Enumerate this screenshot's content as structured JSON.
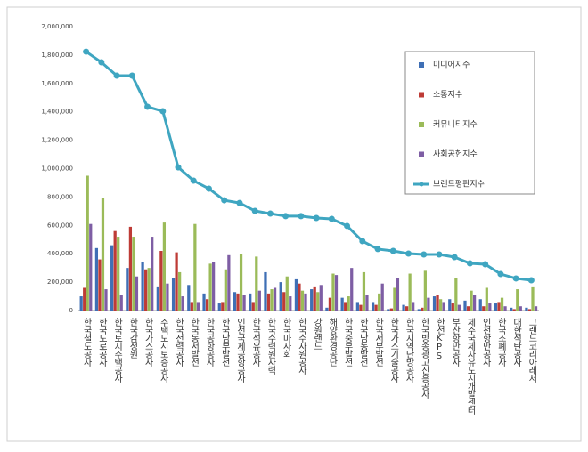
{
  "chart_data": {
    "type": "bar-line",
    "categories": [
      "한국철도공사",
      "한국도로공사",
      "한국토지주택공사",
      "한국감정원",
      "한국가스공사",
      "주택도시보증공사",
      "한국전력공사",
      "한국동서발전",
      "한국공항공사",
      "한국남부발전",
      "인천국제공항공사",
      "한국석유공사",
      "한국수력원자력",
      "한국마사회",
      "한국수자원공사",
      "강원랜드",
      "해양환경공단",
      "한국중부발전",
      "한국남동발전",
      "한국서부발전",
      "한국가스기술공사",
      "한국지역난방공사",
      "한국방송광고진흥공사",
      "한전KPS",
      "부산항만공사",
      "제주국제자유도시개발센터",
      "인천항만공사",
      "한국조폐공사",
      "대한석탄공사",
      "그랜드코리아레저"
    ],
    "series": [
      {
        "name": "미디어지수",
        "color": "#3f6fb5",
        "kind": "bar",
        "values": [
          100000,
          440000,
          460000,
          300000,
          340000,
          170000,
          230000,
          180000,
          120000,
          50000,
          130000,
          120000,
          270000,
          200000,
          220000,
          150000,
          20000,
          90000,
          60000,
          60000,
          10000,
          40000,
          10000,
          100000,
          80000,
          70000,
          80000,
          50000,
          20000,
          20000
        ]
      },
      {
        "name": "소통지수",
        "color": "#be3b36",
        "kind": "bar",
        "values": [
          160000,
          360000,
          560000,
          590000,
          290000,
          420000,
          410000,
          60000,
          80000,
          60000,
          120000,
          60000,
          120000,
          130000,
          190000,
          170000,
          90000,
          60000,
          40000,
          40000,
          15000,
          30000,
          20000,
          110000,
          50000,
          30000,
          30000,
          60000,
          10000,
          10000
        ]
      },
      {
        "name": "커뮤니티지수",
        "color": "#9bbb59",
        "kind": "bar",
        "values": [
          950000,
          790000,
          520000,
          520000,
          300000,
          620000,
          270000,
          610000,
          330000,
          290000,
          400000,
          380000,
          150000,
          240000,
          140000,
          130000,
          260000,
          100000,
          270000,
          120000,
          160000,
          260000,
          280000,
          80000,
          230000,
          140000,
          160000,
          90000,
          150000,
          170000
        ]
      },
      {
        "name": "사회공헌지수",
        "color": "#7e5ea4",
        "kind": "bar",
        "values": [
          610000,
          150000,
          110000,
          240000,
          520000,
          190000,
          100000,
          60000,
          340000,
          390000,
          110000,
          140000,
          160000,
          100000,
          120000,
          180000,
          250000,
          300000,
          110000,
          190000,
          230000,
          60000,
          90000,
          60000,
          40000,
          110000,
          50000,
          30000,
          30000,
          30000
        ]
      },
      {
        "name": "브랜드평판지수",
        "color": "#3fa6c1",
        "kind": "line",
        "values": [
          1824000,
          1749000,
          1655000,
          1655000,
          1436000,
          1404000,
          1009000,
          915000,
          859000,
          777000,
          758000,
          702000,
          683000,
          665000,
          665000,
          652000,
          646000,
          596000,
          489000,
          433000,
          420000,
          401000,
          395000,
          395000,
          376000,
          332000,
          326000,
          257000,
          226000,
          213000
        ]
      }
    ],
    "ylim": [
      0,
      2000000
    ],
    "yticks": [
      0,
      {
        "value": 200000,
        "label": "200,000"
      },
      {
        "value": 400000,
        "label": "400,000"
      },
      {
        "value": 600000,
        "label": "600,000"
      },
      {
        "value": 800000,
        "label": "800,000"
      },
      {
        "value": 1000000,
        "label": "1,000,000"
      },
      {
        "value": 1200000,
        "label": "1,200,000"
      },
      {
        "value": 1400000,
        "label": "1,400,000"
      },
      {
        "value": 1600000,
        "label": "1,600,000"
      },
      {
        "value": 1800000,
        "label": "1,800,000"
      },
      {
        "value": 2000000,
        "label": "2,000,000"
      }
    ],
    "grid": false,
    "legend": "right"
  }
}
